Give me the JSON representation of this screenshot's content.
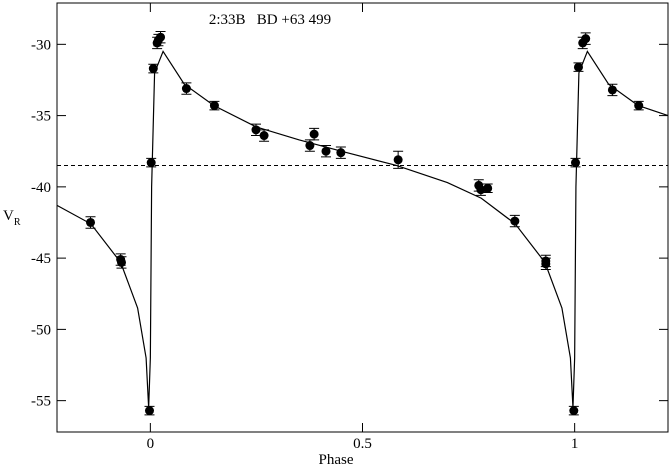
{
  "chart_data": {
    "type": "scatter",
    "title": "2:33B   BD +63 499",
    "xlabel": "Phase",
    "ylabel": "V",
    "ylabel_sub": "R",
    "xlim": [
      -0.22,
      1.22
    ],
    "ylim": [
      -57.2,
      -27.1
    ],
    "xticks": [
      0,
      0.5,
      1
    ],
    "yticks": [
      -30,
      -35,
      -40,
      -45,
      -50,
      -55
    ],
    "points": {
      "color": "#000000",
      "x": [
        -0.141,
        -0.07,
        -0.068,
        -0.002,
        0.002,
        0.007,
        0.016,
        0.019,
        0.024,
        0.085,
        0.151,
        0.249,
        0.268,
        0.386,
        0.376,
        0.414,
        0.449,
        0.584,
        0.774,
        0.779,
        0.795,
        0.859,
        0.932,
        0.932,
        0.998,
        1.002,
        1.009,
        1.019,
        1.026,
        1.089,
        1.151
      ],
      "values": [
        -42.5,
        -45.1,
        -45.3,
        -55.7,
        -38.3,
        -31.7,
        -29.9,
        -29.7,
        -29.5,
        -33.1,
        -34.3,
        -36.0,
        -36.4,
        -36.3,
        -37.1,
        -37.5,
        -37.6,
        -38.1,
        -39.9,
        -40.2,
        -40.1,
        -42.4,
        -45.2,
        -45.4,
        -55.7,
        -38.3,
        -31.6,
        -29.9,
        -29.6,
        -33.2,
        -34.3
      ],
      "errors": [
        0.4,
        0.4,
        0.4,
        0.3,
        0.3,
        0.3,
        0.4,
        0.4,
        0.4,
        0.4,
        0.3,
        0.4,
        0.4,
        0.4,
        0.4,
        0.4,
        0.4,
        0.6,
        0.4,
        0.4,
        0.3,
        0.4,
        0.4,
        0.4,
        0.3,
        0.3,
        0.3,
        0.4,
        0.4,
        0.4,
        0.3
      ]
    },
    "curve": {
      "color": "#000000",
      "x": [
        -0.22,
        -0.14,
        -0.07,
        -0.03,
        -0.01,
        -0.004,
        0.0,
        0.003,
        0.01,
        0.03,
        0.08,
        0.15,
        0.25,
        0.35,
        0.45,
        0.58,
        0.7,
        0.78,
        0.86,
        0.93,
        0.97,
        0.99,
        0.996,
        1.0,
        1.003,
        1.01,
        1.03,
        1.08,
        1.15,
        1.22
      ],
      "values": [
        -41.3,
        -42.6,
        -45.3,
        -48.5,
        -52,
        -55.5,
        -52,
        -40,
        -32,
        -30.5,
        -32.8,
        -34.3,
        -35.8,
        -36.7,
        -37.5,
        -38.5,
        -39.7,
        -40.8,
        -42.6,
        -45.3,
        -48.5,
        -52,
        -55.5,
        -52,
        -40,
        -32,
        -30.5,
        -32.8,
        -34.3,
        -35.0
      ]
    },
    "hline": {
      "value": -38.5,
      "style": "dashed",
      "color": "#000000"
    }
  }
}
